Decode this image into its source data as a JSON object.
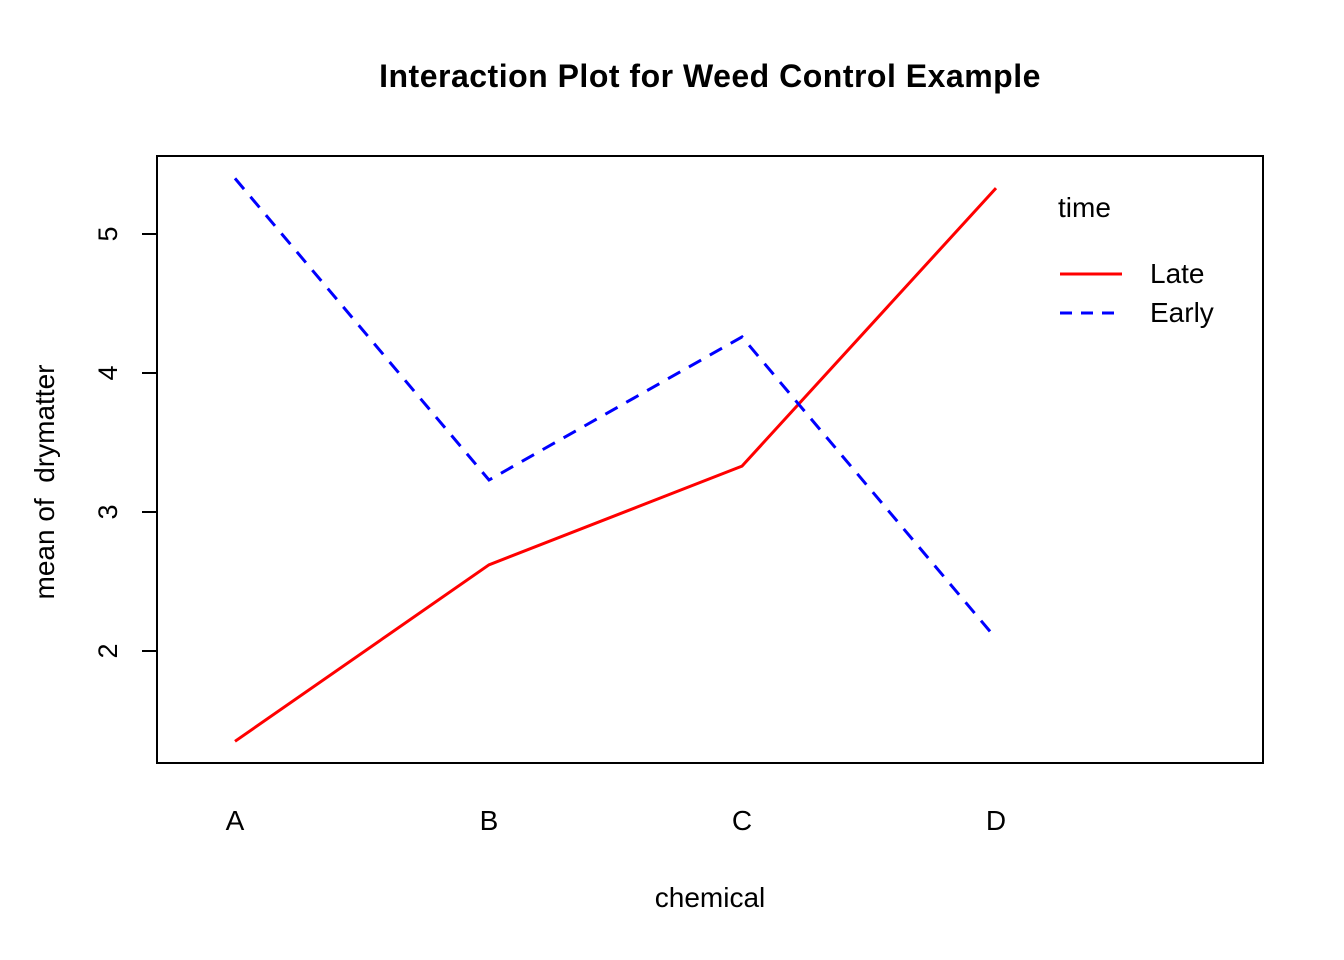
{
  "title": "Interaction Plot for Weed Control Example",
  "chart_data": {
    "type": "line",
    "title": "Interaction Plot for Weed Control Example",
    "xlabel": "chemical",
    "ylabel": "mean of  drymatter",
    "categories": [
      "A",
      "B",
      "C",
      "D"
    ],
    "series": [
      {
        "name": "Late",
        "values": [
          1.35,
          2.62,
          3.33,
          5.33
        ],
        "color": "#FF0000",
        "style": "solid"
      },
      {
        "name": "Early",
        "values": [
          5.4,
          3.23,
          4.26,
          2.09
        ],
        "color": "#0000FF",
        "style": "dashed"
      }
    ],
    "yticks": [
      2,
      3,
      4,
      5
    ],
    "ylim": [
      1.19,
      5.56
    ],
    "grid": false,
    "legend": {
      "title": "time",
      "position": "top-right-inside",
      "entries": [
        "Late",
        "Early"
      ]
    },
    "axis_color": "#000000",
    "background": "#FFFFFF"
  }
}
